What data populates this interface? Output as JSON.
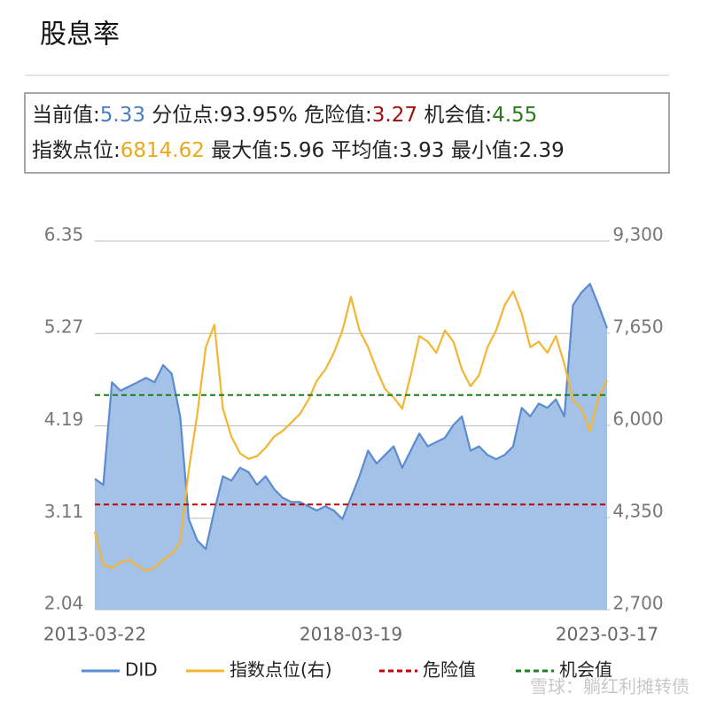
{
  "chart_data": {
    "type": "line",
    "title": "股息率",
    "info_rows": [
      [
        {
          "label": "当前值:",
          "value": "5.33",
          "color": "#4a7fc1"
        },
        {
          "label": "分位点:",
          "value": "93.95%",
          "color": "#222222"
        },
        {
          "label": "危险值:",
          "value": "3.27",
          "color": "#a01010"
        },
        {
          "label": "机会值:",
          "value": "4.55",
          "color": "#2a7a1a"
        }
      ],
      [
        {
          "label": "指数点位:",
          "value": "6814.62",
          "color": "#e9a91c"
        },
        {
          "label": "最大值:",
          "value": "5.96",
          "color": "#222222"
        },
        {
          "label": "平均值:",
          "value": "3.93",
          "color": "#222222"
        },
        {
          "label": "最小值:",
          "value": "2.39",
          "color": "#222222"
        }
      ]
    ],
    "categories": [
      "2013-03-22",
      null,
      null,
      null,
      null,
      null,
      null,
      null,
      null,
      null,
      null,
      null,
      null,
      null,
      null,
      null,
      null,
      null,
      null,
      null,
      null,
      null,
      null,
      null,
      null,
      null,
      null,
      null,
      null,
      null,
      "2018-03-19",
      null,
      null,
      null,
      null,
      null,
      null,
      null,
      null,
      null,
      null,
      null,
      null,
      null,
      null,
      null,
      null,
      null,
      null,
      null,
      null,
      null,
      null,
      null,
      null,
      null,
      null,
      null,
      null,
      null,
      "2023-03-17"
    ],
    "series": [
      {
        "name": "DID",
        "color": "#5b8bd0",
        "fill": "#a4c2e8",
        "area": true,
        "values": [
          3.57,
          3.5,
          4.7,
          4.6,
          4.65,
          4.7,
          4.75,
          4.7,
          4.9,
          4.8,
          4.3,
          3.1,
          2.85,
          2.75,
          3.2,
          3.6,
          3.55,
          3.7,
          3.65,
          3.5,
          3.6,
          3.45,
          3.35,
          3.3,
          3.3,
          3.25,
          3.2,
          3.25,
          3.2,
          3.1,
          3.35,
          3.6,
          3.9,
          3.75,
          3.85,
          3.95,
          3.7,
          3.9,
          4.1,
          3.95,
          4.0,
          4.05,
          4.2,
          4.3,
          3.9,
          3.95,
          3.85,
          3.8,
          3.85,
          3.95,
          4.4,
          4.3,
          4.45,
          4.4,
          4.5,
          4.3,
          5.6,
          5.75,
          5.85,
          5.6,
          5.33
        ]
      },
      {
        "name": "指数点位(右)",
        "color": "#f2b632",
        "axis": "y2",
        "values": [
          4100,
          3500,
          3450,
          3550,
          3600,
          3480,
          3400,
          3450,
          3600,
          3700,
          3900,
          5200,
          6200,
          7400,
          7800,
          6300,
          5800,
          5500,
          5400,
          5450,
          5600,
          5800,
          5900,
          6050,
          6200,
          6450,
          6800,
          7000,
          7300,
          7700,
          8300,
          7700,
          7400,
          7000,
          6650,
          6500,
          6300,
          6900,
          7600,
          7500,
          7300,
          7700,
          7500,
          7000,
          6700,
          6900,
          7400,
          7700,
          8150,
          8400,
          8000,
          7400,
          7500,
          7300,
          7600,
          7100,
          6450,
          6300,
          5900,
          6500,
          6814.62
        ]
      }
    ],
    "reference_lines": [
      {
        "name": "危险值",
        "value": 3.27,
        "color": "#c00000"
      },
      {
        "name": "机会值",
        "value": 4.55,
        "color": "#1a7f1a"
      }
    ],
    "ylim": [
      2.04,
      6.35
    ],
    "yticks": [
      2.04,
      3.11,
      4.19,
      5.27,
      6.35
    ],
    "y2lim": [
      2700,
      9300
    ],
    "y2ticks": [
      {
        "value": 2700,
        "label": "2,700"
      },
      {
        "value": 4350,
        "label": "4,350"
      },
      {
        "value": 6000,
        "label": "6,000"
      },
      {
        "value": 7650,
        "label": "7,650"
      },
      {
        "value": 9300,
        "label": "9,300"
      }
    ],
    "grid": true,
    "watermark": "雪球：躺红利摊转债"
  }
}
